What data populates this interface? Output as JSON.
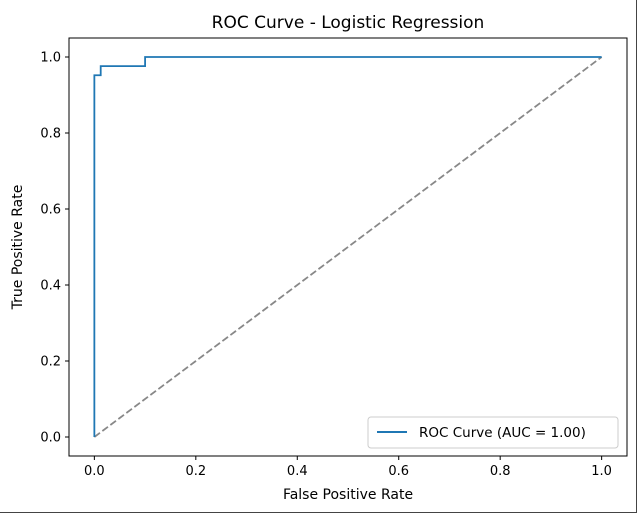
{
  "chart_data": {
    "type": "line",
    "title": "ROC Curve - Logistic Regression",
    "xlabel": "False Positive Rate",
    "ylabel": "True Positive Rate",
    "xlim": [
      -0.05,
      1.05
    ],
    "ylim": [
      -0.05,
      1.05
    ],
    "xticks": [
      0.0,
      0.2,
      0.4,
      0.6,
      0.8,
      1.0
    ],
    "yticks": [
      0.0,
      0.2,
      0.4,
      0.6,
      0.8,
      1.0
    ],
    "xtick_labels": [
      "0.0",
      "0.2",
      "0.4",
      "0.6",
      "0.8",
      "1.0"
    ],
    "ytick_labels": [
      "0.0",
      "0.2",
      "0.4",
      "0.6",
      "0.8",
      "1.0"
    ],
    "grid": false,
    "legend_position": "lower-right",
    "series": [
      {
        "name": "ROC Curve (AUC = 1.00)",
        "color": "#1f77b4",
        "style": "solid",
        "x": [
          0.0,
          0.0,
          0.0,
          0.0125,
          0.0125,
          0.1,
          0.1,
          1.0
        ],
        "y": [
          0.0,
          0.952,
          0.952,
          0.952,
          0.976,
          0.976,
          1.0,
          1.0
        ]
      },
      {
        "color": "#888888",
        "style": "dashed",
        "x": [
          0.0,
          1.0
        ],
        "y": [
          0.0,
          1.0
        ]
      }
    ]
  }
}
